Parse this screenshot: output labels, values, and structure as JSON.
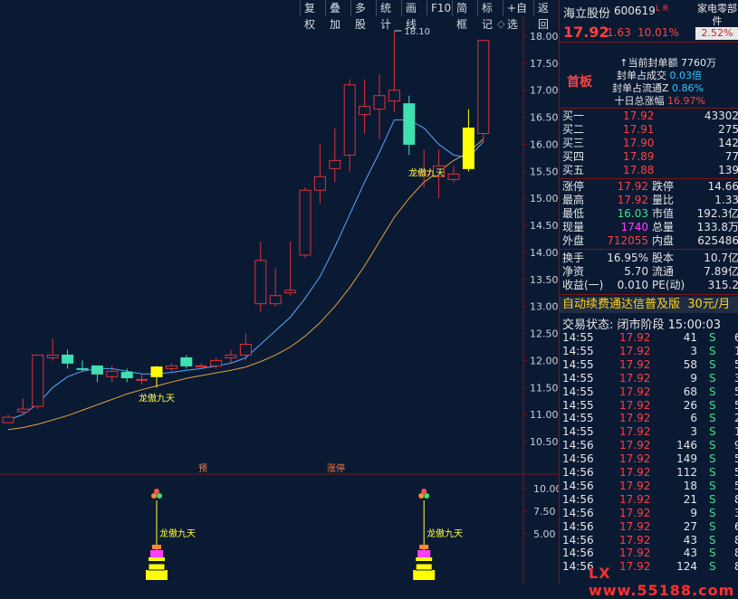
{
  "toolbar": {
    "buttons": [
      "复权",
      "叠加",
      "多股",
      "统计",
      "画线",
      "F10",
      "简框",
      "标记",
      "+自选",
      "返回"
    ]
  },
  "stock": {
    "name": "海立股份",
    "code": "600619",
    "lr": "L R",
    "industry": "家电零部件",
    "industry_pct": "2.52%",
    "price": "17.92",
    "change": "1.63",
    "change_pct": "10.01%",
    "tag": "首板"
  },
  "seal": {
    "amount_label": "当前封单额",
    "amount": "7760万",
    "ratio_deal_label": "封单占成交",
    "ratio_deal": "0.03倍",
    "ratio_float_label": "封单占流通Z",
    "ratio_float": "0.86%",
    "ten_day_label": "十日总涨幅",
    "ten_day": "16.97%"
  },
  "order_book": [
    {
      "label": "买一",
      "price": "17.92",
      "qty": "43302"
    },
    {
      "label": "买二",
      "price": "17.91",
      "qty": "275"
    },
    {
      "label": "买三",
      "price": "17.90",
      "qty": "142"
    },
    {
      "label": "买四",
      "price": "17.89",
      "qty": "77"
    },
    {
      "label": "买五",
      "price": "17.88",
      "qty": "139"
    }
  ],
  "stats": [
    {
      "l1": "涨停",
      "v1": "17.92",
      "c1": "red",
      "l2": "跌停",
      "v2": "14.66",
      "c2": "green"
    },
    {
      "l1": "最高",
      "v1": "17.92",
      "c1": "red",
      "l2": "量比",
      "v2": "1.33",
      "c2": "red"
    },
    {
      "l1": "最低",
      "v1": "16.03",
      "c1": "green",
      "l2": "市值",
      "v2": "192.3亿",
      "c2": "white"
    },
    {
      "l1": "现量",
      "v1": "1740",
      "c1": "magenta",
      "l2": "总量",
      "v2": "133.8万",
      "c2": "white"
    },
    {
      "l1": "外盘",
      "v1": "712055",
      "c1": "red",
      "l2": "内盘",
      "v2": "625486",
      "c2": "green"
    },
    {
      "l1": "换手",
      "v1": "16.95%",
      "c1": "white",
      "l2": "股本",
      "v2": "10.7亿",
      "c2": "white"
    },
    {
      "l1": "净资",
      "v1": "5.70",
      "c1": "white",
      "l2": "流通",
      "v2": "7.89亿",
      "c2": "white"
    },
    {
      "l1": "收益(一)",
      "v1": "0.010",
      "c1": "white",
      "l2": "PE(动)",
      "v2": "315.2",
      "c2": "white"
    }
  ],
  "ad": {
    "text": "自动续费通达信普及版",
    "price": "30元/月"
  },
  "trade_state": "交易状态: 闭市阶段 15:00:03",
  "ticks": [
    {
      "t": "14:55",
      "p": "17.92",
      "v": "41",
      "s": "S",
      "x": "6"
    },
    {
      "t": "14:55",
      "p": "17.92",
      "v": "3",
      "s": "S",
      "x": "1"
    },
    {
      "t": "14:55",
      "p": "17.92",
      "v": "58",
      "s": "S",
      "x": "5"
    },
    {
      "t": "14:55",
      "p": "17.92",
      "v": "9",
      "s": "S",
      "x": "3"
    },
    {
      "t": "14:55",
      "p": "17.92",
      "v": "68",
      "s": "S",
      "x": "5"
    },
    {
      "t": "14:55",
      "p": "17.92",
      "v": "26",
      "s": "S",
      "x": "5"
    },
    {
      "t": "14:55",
      "p": "17.92",
      "v": "6",
      "s": "S",
      "x": "2"
    },
    {
      "t": "14:55",
      "p": "17.92",
      "v": "3",
      "s": "S",
      "x": "1"
    },
    {
      "t": "14:56",
      "p": "17.92",
      "v": "146",
      "s": "S",
      "x": "9"
    },
    {
      "t": "14:56",
      "p": "17.92",
      "v": "149",
      "s": "S",
      "x": "5"
    },
    {
      "t": "14:56",
      "p": "17.92",
      "v": "112",
      "s": "S",
      "x": "5"
    },
    {
      "t": "14:56",
      "p": "17.92",
      "v": "18",
      "s": "S",
      "x": "5"
    },
    {
      "t": "14:56",
      "p": "17.92",
      "v": "21",
      "s": "S",
      "x": "8"
    },
    {
      "t": "14:56",
      "p": "17.92",
      "v": "9",
      "s": "S",
      "x": "3"
    },
    {
      "t": "14:56",
      "p": "17.92",
      "v": "27",
      "s": "S",
      "x": "6"
    },
    {
      "t": "14:56",
      "p": "17.92",
      "v": "43",
      "s": "S",
      "x": "8"
    },
    {
      "t": "14:56",
      "p": "17.92",
      "v": "43",
      "s": "S",
      "x": "8"
    },
    {
      "t": "14:56",
      "p": "17.92",
      "v": "124",
      "s": "S",
      "x": "8"
    }
  ],
  "watermark": "LX www.55188.com",
  "chart_data": {
    "type": "candlestick",
    "y_ticks": [
      "18.00",
      "17.50",
      "17.00",
      "16.50",
      "16.00",
      "15.50",
      "15.00",
      "14.50",
      "14.00",
      "13.50",
      "13.00",
      "12.50",
      "12.00",
      "11.50",
      "11.00",
      "10.50"
    ],
    "ylim": [
      10.25,
      18.1
    ],
    "high_label": "18.10",
    "signal_label": "龙傲九天",
    "markers": [
      "预",
      "涨停"
    ],
    "candles": [
      {
        "o": 10.85,
        "c": 10.95,
        "h": 11.0,
        "l": 10.85,
        "color": "red"
      },
      {
        "o": 11.1,
        "c": 11.05,
        "h": 11.3,
        "l": 11.0,
        "color": "red"
      },
      {
        "o": 11.15,
        "c": 12.1,
        "h": 12.1,
        "l": 11.1,
        "color": "red"
      },
      {
        "o": 12.05,
        "c": 12.1,
        "h": 12.4,
        "l": 12.0,
        "color": "red"
      },
      {
        "o": 12.1,
        "c": 11.95,
        "h": 12.2,
        "l": 11.85,
        "color": "cyan"
      },
      {
        "o": 11.85,
        "c": 11.85,
        "h": 12.0,
        "l": 11.8,
        "color": "cyan"
      },
      {
        "o": 11.9,
        "c": 11.75,
        "h": 11.9,
        "l": 11.6,
        "color": "cyan"
      },
      {
        "o": 11.7,
        "c": 11.8,
        "h": 11.9,
        "l": 11.6,
        "color": "red"
      },
      {
        "o": 11.78,
        "c": 11.68,
        "h": 11.85,
        "l": 11.6,
        "color": "cyan"
      },
      {
        "o": 11.65,
        "c": 11.65,
        "h": 11.75,
        "l": 11.55,
        "color": "red"
      },
      {
        "o": 11.7,
        "c": 11.88,
        "h": 11.9,
        "l": 11.5,
        "color": "yellow"
      },
      {
        "o": 11.85,
        "c": 11.9,
        "h": 11.95,
        "l": 11.8,
        "color": "red"
      },
      {
        "o": 12.05,
        "c": 11.9,
        "h": 12.1,
        "l": 11.85,
        "color": "cyan"
      },
      {
        "o": 11.9,
        "c": 11.9,
        "h": 11.95,
        "l": 11.85,
        "color": "red"
      },
      {
        "o": 11.9,
        "c": 12.0,
        "h": 12.05,
        "l": 11.85,
        "color": "red"
      },
      {
        "o": 12.05,
        "c": 12.1,
        "h": 12.2,
        "l": 11.95,
        "color": "red"
      },
      {
        "o": 12.1,
        "c": 12.3,
        "h": 12.5,
        "l": 12.0,
        "color": "red"
      },
      {
        "o": 13.05,
        "c": 13.85,
        "h": 14.2,
        "l": 12.9,
        "color": "red"
      },
      {
        "o": 13.2,
        "c": 13.05,
        "h": 13.7,
        "l": 13.0,
        "color": "red"
      },
      {
        "o": 13.3,
        "c": 13.25,
        "h": 14.2,
        "l": 13.2,
        "color": "red"
      },
      {
        "o": 13.95,
        "c": 15.15,
        "h": 15.2,
        "l": 13.9,
        "color": "red"
      },
      {
        "o": 15.15,
        "c": 15.4,
        "h": 16.0,
        "l": 14.9,
        "color": "red"
      },
      {
        "o": 15.55,
        "c": 15.7,
        "h": 16.3,
        "l": 15.3,
        "color": "red"
      },
      {
        "o": 15.8,
        "c": 17.1,
        "h": 17.2,
        "l": 15.5,
        "color": "red"
      },
      {
        "o": 16.7,
        "c": 16.55,
        "h": 17.2,
        "l": 16.2,
        "color": "red"
      },
      {
        "o": 16.65,
        "c": 16.9,
        "h": 17.3,
        "l": 16.1,
        "color": "red"
      },
      {
        "o": 16.8,
        "c": 17.0,
        "h": 18.1,
        "l": 16.6,
        "color": "red"
      },
      {
        "o": 16.75,
        "c": 16.0,
        "h": 16.9,
        "l": 15.8,
        "color": "cyan"
      },
      {
        "o": 15.45,
        "c": 15.5,
        "h": 15.9,
        "l": 15.2,
        "color": "red"
      },
      {
        "o": 15.4,
        "c": 15.6,
        "h": 15.9,
        "l": 15.0,
        "color": "red"
      },
      {
        "o": 15.35,
        "c": 15.45,
        "h": 15.6,
        "l": 15.3,
        "color": "red"
      },
      {
        "o": 15.55,
        "c": 16.3,
        "h": 16.65,
        "l": 15.5,
        "color": "yellow"
      },
      {
        "o": 16.2,
        "c": 17.92,
        "h": 17.92,
        "l": 16.03,
        "color": "red"
      }
    ],
    "ma_short": [
      10.9,
      11.0,
      11.2,
      11.5,
      11.7,
      11.8,
      11.85,
      11.85,
      11.8,
      11.75,
      11.75,
      11.78,
      11.82,
      11.85,
      11.9,
      11.95,
      12.05,
      12.3,
      12.55,
      12.8,
      13.15,
      13.55,
      14.1,
      14.7,
      15.3,
      15.85,
      16.45,
      16.45,
      16.3,
      16.0,
      15.8,
      15.75,
      16.05
    ],
    "ma_long": [
      10.72,
      10.76,
      10.82,
      10.9,
      10.98,
      11.08,
      11.18,
      11.28,
      11.38,
      11.46,
      11.53,
      11.6,
      11.67,
      11.72,
      11.77,
      11.82,
      11.88,
      11.98,
      12.1,
      12.25,
      12.45,
      12.7,
      13.0,
      13.35,
      13.75,
      14.2,
      14.65,
      15.0,
      15.3,
      15.5,
      15.7,
      15.85,
      16.1
    ],
    "sub_ticks": [
      "10.00",
      "7.50",
      "5.00"
    ],
    "sub_ylim": [
      0,
      12
    ],
    "signals": [
      10,
      28
    ]
  }
}
